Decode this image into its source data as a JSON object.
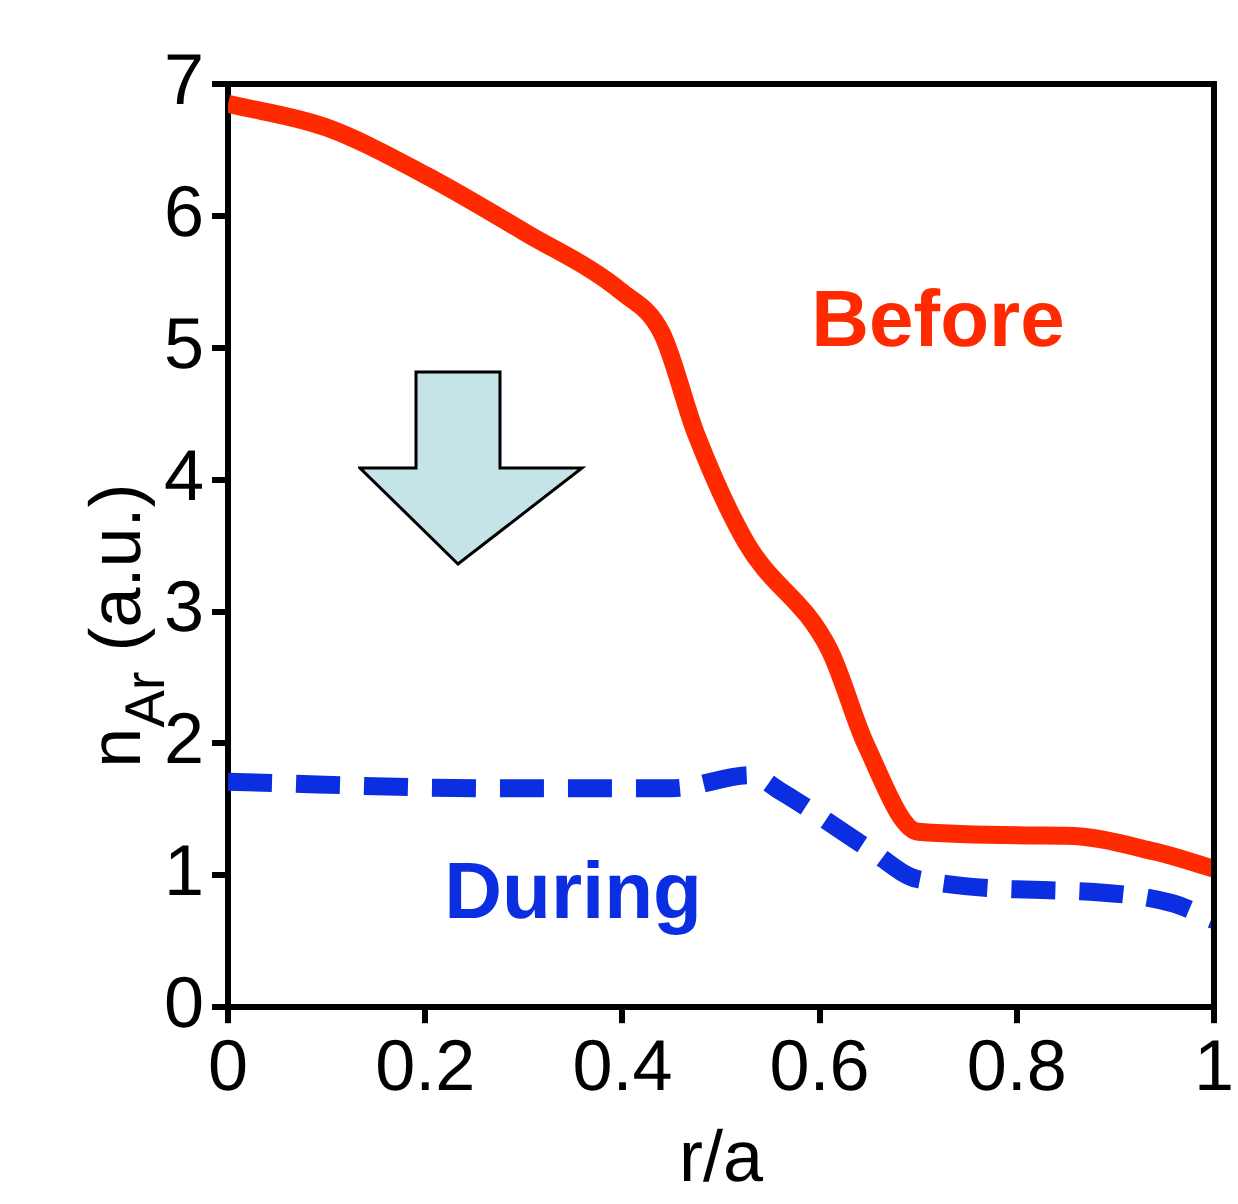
{
  "chart_data": {
    "type": "line",
    "xlabel": "r/a",
    "ylabel": "n$_{Ar}$ (a.u.)",
    "xlim": [
      0,
      1
    ],
    "ylim": [
      0,
      7
    ],
    "xticks": [
      0,
      0.2,
      0.4,
      0.6,
      0.8,
      1
    ],
    "yticks": [
      0,
      1,
      2,
      3,
      4,
      5,
      6,
      7
    ],
    "grid": false,
    "legend": false,
    "marker": "none",
    "series": [
      {
        "name": "Before",
        "color": "#ff2a00",
        "line_style": "solid",
        "x": [
          0,
          0.1,
          0.2,
          0.3,
          0.4,
          0.44,
          0.475,
          0.525,
          0.61,
          0.647,
          0.7,
          0.85,
          0.94,
          1
        ],
        "values": [
          6.85,
          6.67,
          6.31,
          5.88,
          5.42,
          5.11,
          4.34,
          3.53,
          2.71,
          1.99,
          1.33,
          1.3,
          1.18,
          1.05
        ]
      },
      {
        "name": "During",
        "color": "#0a2ee0",
        "line_style": "dashed",
        "x": [
          0,
          0.27,
          0.45,
          0.53,
          0.56,
          0.65,
          0.7,
          0.885,
          0.957,
          1
        ],
        "values": [
          1.71,
          1.66,
          1.66,
          1.76,
          1.64,
          1.2,
          0.97,
          0.87,
          0.79,
          0.66
        ]
      }
    ]
  }
}
